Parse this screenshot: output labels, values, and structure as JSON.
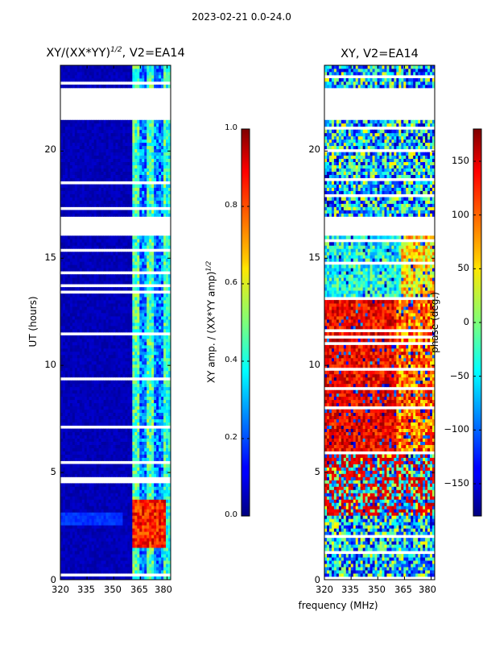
{
  "suptitle": "2023-02-21 0.0-24.0",
  "shared_xlabel": "frequency (MHz)",
  "chart_data": [
    {
      "type": "heatmap",
      "title": "XY/(XX*YY)",
      "title_exp": "1/2",
      "title_suffix": ", V2=EA14",
      "ylabel": "UT (hours)",
      "xlabel": "frequency (MHz)",
      "xlim": [
        320,
        382
      ],
      "ylim": [
        0,
        24
      ],
      "xticks": [
        320,
        335,
        350,
        365,
        380
      ],
      "yticks": [
        0,
        5,
        10,
        15,
        20
      ],
      "colormap": "jet",
      "colorbar": {
        "label": "XY amp. / (XX*YY amp)",
        "label_exp": "1/2",
        "range": [
          0.0,
          1.0
        ],
        "ticks": [
          "0.0",
          "0.2",
          "0.4",
          "0.6",
          "0.8",
          "1.0"
        ]
      },
      "data_gaps_hours": [
        [
          21.5,
          22.9
        ],
        [
          16.0,
          17.0
        ]
      ],
      "description_values": {
        "low_freq_band_level": 0.05,
        "high_freq_band_MHz": [
          360,
          382
        ],
        "high_freq_band_level": 0.35,
        "peak_region_hours": [
          1.5,
          3.8
        ],
        "peak_level": 0.9
      }
    },
    {
      "type": "heatmap",
      "title": "XY, V2=EA14",
      "xlabel": "frequency (MHz)",
      "xlim": [
        320,
        382
      ],
      "ylim": [
        0,
        24
      ],
      "xticks": [
        320,
        335,
        350,
        365,
        380
      ],
      "yticks": [
        0,
        5,
        10,
        15,
        20
      ],
      "colormap": "jet",
      "colorbar": {
        "label": "phase (deg.)",
        "range": [
          -180,
          180
        ],
        "ticks": [
          "−150",
          "−100",
          "−50",
          "0",
          "50",
          "100",
          "150"
        ]
      },
      "data_gaps_hours": [
        [
          21.5,
          22.9
        ],
        [
          16.0,
          17.0
        ]
      ],
      "description_values": {
        "dominant_phase_hours_6_13": 150,
        "dominant_phase_hours_13_16": -20
      }
    }
  ]
}
